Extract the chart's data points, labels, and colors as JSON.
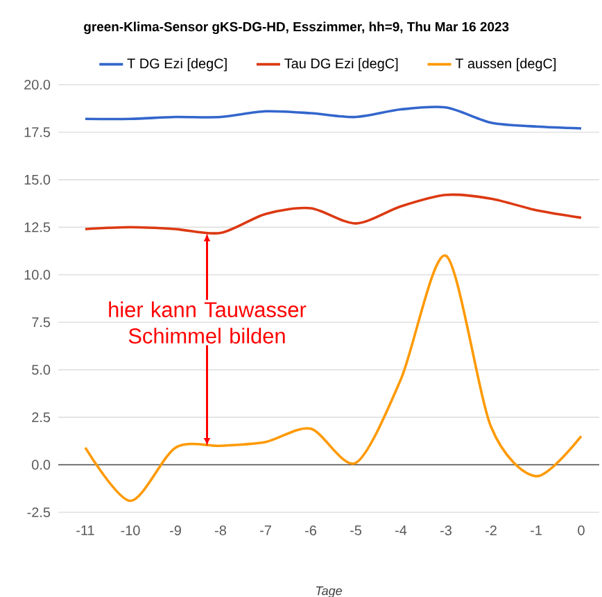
{
  "chart_data": {
    "type": "line",
    "title": "green-Klima-Sensor gKS-DG-HD, Esszimmer, hh=9, Thu Mar 16 2023",
    "xlabel": "Tage",
    "x": [
      -11,
      -10,
      -9,
      -8,
      -7,
      -6,
      -5,
      -4,
      -3,
      -2,
      -1,
      0
    ],
    "series": [
      {
        "name": "T DG Ezi [degC]",
        "color": "#3366cc",
        "values": [
          18.2,
          18.2,
          18.3,
          18.3,
          18.6,
          18.5,
          18.3,
          18.7,
          18.8,
          18.0,
          17.8,
          17.7
        ]
      },
      {
        "name": "Tau DG Ezi [degC]",
        "color": "#dc3912",
        "values": [
          12.4,
          12.5,
          12.4,
          12.2,
          13.2,
          13.5,
          12.7,
          13.6,
          14.2,
          14.0,
          13.4,
          13.0
        ]
      },
      {
        "name": "T aussen [degC]",
        "color": "#ff9900",
        "values": [
          0.9,
          -1.9,
          0.9,
          1.0,
          1.2,
          1.9,
          0.1,
          4.5,
          11.0,
          2.0,
          -0.6,
          1.5
        ]
      }
    ],
    "xlim": [
      -11.6,
      0.4
    ],
    "xticks": [
      -11,
      -10,
      -9,
      -8,
      -7,
      -6,
      -5,
      -4,
      -3,
      -2,
      -1,
      0
    ],
    "ylim": [
      -2.5,
      20
    ],
    "yticks": [
      {
        "value": -2.5,
        "label": "-2.5"
      },
      {
        "value": 0,
        "label": "0.0"
      },
      {
        "value": 2.5,
        "label": "2.5"
      },
      {
        "value": 5,
        "label": "5.0"
      },
      {
        "value": 7.5,
        "label": "7.5"
      },
      {
        "value": 10,
        "label": "10.0"
      },
      {
        "value": 12.5,
        "label": "12.5"
      },
      {
        "value": 15,
        "label": "15.0"
      },
      {
        "value": 17.5,
        "label": "17.5"
      },
      {
        "value": 20,
        "label": "20.0"
      }
    ],
    "grid": "y",
    "legend": "top",
    "marker": "none",
    "line_style": "solid",
    "annotations": [
      {
        "text": "hier kann Tauwasser Schimmel bilden",
        "x": -8.3,
        "y": 12.2
      }
    ]
  }
}
